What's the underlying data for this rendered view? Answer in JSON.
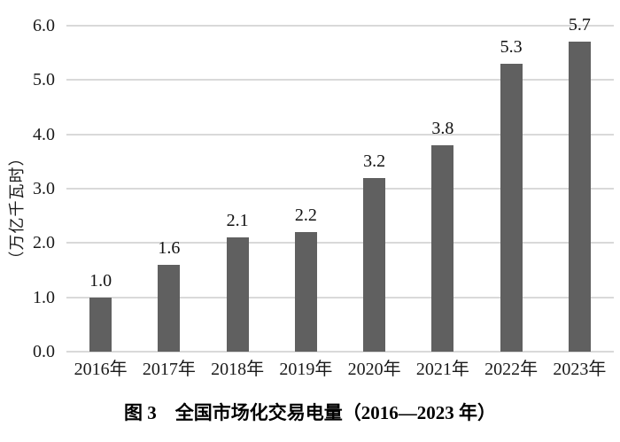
{
  "figure": {
    "caption": "图 3　全国市场化交易电量（2016—2023 年）"
  },
  "chart_data": {
    "type": "bar",
    "title": "图 3　全国市场化交易电量（2016—2023 年）",
    "categories": [
      "2016年",
      "2017年",
      "2018年",
      "2019年",
      "2020年",
      "2021年",
      "2022年",
      "2023年"
    ],
    "values": [
      1.0,
      1.6,
      2.1,
      2.2,
      3.2,
      3.8,
      5.3,
      5.7
    ],
    "data_labels": [
      "1.0",
      "1.6",
      "2.1",
      "2.2",
      "3.2",
      "3.8",
      "5.3",
      "5.7"
    ],
    "xlabel": "",
    "ylabel": "（万亿千瓦时）",
    "ylim": [
      0,
      6
    ],
    "yticks": [
      "0.0",
      "1.0",
      "2.0",
      "3.0",
      "4.0",
      "5.0",
      "6.0"
    ],
    "grid": true,
    "legend": "none",
    "bar_color": "#606060",
    "gridline_color": "#d9d9d9"
  }
}
